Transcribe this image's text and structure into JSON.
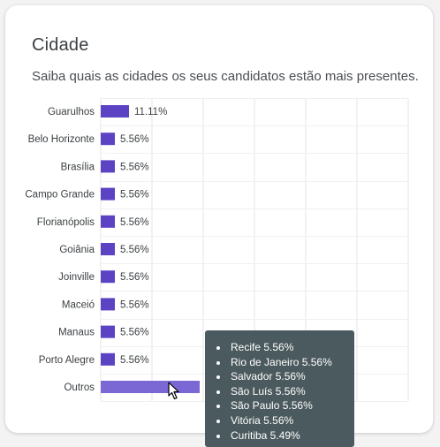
{
  "card": {
    "title": "Cidade",
    "subtitle": "Saiba quais as cidades os seus candidatos estão mais presentes."
  },
  "colors": {
    "bar": "#5b43c4",
    "bar_hover": "#7b68d4",
    "tooltip_bg": "#4b5a5e",
    "grid": "#e6e6e6"
  },
  "chart_data": {
    "type": "bar",
    "orientation": "horizontal",
    "categories": [
      "Guarulhos",
      "Belo Horizonte",
      "Brasília",
      "Campo Grande",
      "Florianópolis",
      "Goiânia",
      "Joinville",
      "Maceió",
      "Manaus",
      "Porto Alegre",
      "Outros"
    ],
    "values": [
      11.11,
      5.56,
      5.56,
      5.56,
      5.56,
      5.56,
      5.56,
      5.56,
      5.56,
      5.56,
      38.88
    ],
    "value_labels": [
      "11.11%",
      "5.56%",
      "5.56%",
      "5.56%",
      "5.56%",
      "5.56%",
      "5.56%",
      "5.56%",
      "5.56%",
      "5.56%",
      ""
    ],
    "highlighted_category": "Outros",
    "grid": true
  },
  "tooltip": {
    "items": [
      "Recife 5.56%",
      "Rio de Janeiro 5.56%",
      "Salvador 5.56%",
      "São Luís 5.56%",
      "São Paulo 5.56%",
      "Vitória 5.56%",
      "Curitiba 5.49%"
    ]
  },
  "cursor_icon": "pointer-arrow-icon"
}
